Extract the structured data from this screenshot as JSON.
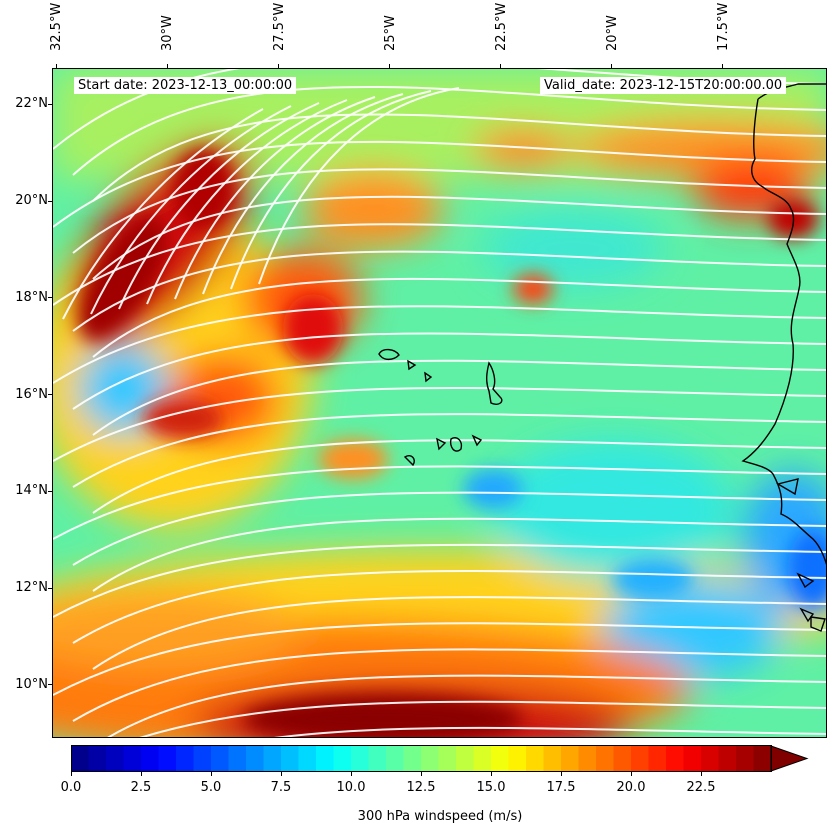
{
  "map": {
    "start_label": "Start date: 2023-12-13_00:00:00",
    "valid_label": "Valid_date: 2023-12-15T20:00:00.00",
    "lon_ticks": [
      {
        "text": "32.5°W",
        "lon": -32.5
      },
      {
        "text": "30°W",
        "lon": -30
      },
      {
        "text": "27.5°W",
        "lon": -27.5
      },
      {
        "text": "25°W",
        "lon": -25
      },
      {
        "text": "22.5°W",
        "lon": -22.5
      },
      {
        "text": "20°W",
        "lon": -20
      },
      {
        "text": "17.5°W",
        "lon": -17.5
      }
    ],
    "lat_ticks": [
      {
        "text": "22°N",
        "lat": 22
      },
      {
        "text": "20°N",
        "lat": 20
      },
      {
        "text": "18°N",
        "lat": 18
      },
      {
        "text": "16°N",
        "lat": 16
      },
      {
        "text": "14°N",
        "lat": 14
      },
      {
        "text": "12°N",
        "lat": 12
      },
      {
        "text": "10°N",
        "lat": 10
      }
    ],
    "extent": {
      "lon_min": -32.6,
      "lon_max": -15.15,
      "lat_min": 8.9,
      "lat_max": 22.75
    },
    "field": "300 hPa windspeed (m/s)",
    "streamline_color": "#ffffff",
    "coastline_color": "#000000"
  },
  "colorbar": {
    "label": "300 hPa windspeed (m/s)",
    "min": 0,
    "max": 25,
    "extend": "max",
    "ticks": [
      "0.0",
      "2.5",
      "5.0",
      "7.5",
      "10.0",
      "12.5",
      "15.0",
      "17.5",
      "20.0",
      "22.5"
    ],
    "colormap": "jet"
  }
}
